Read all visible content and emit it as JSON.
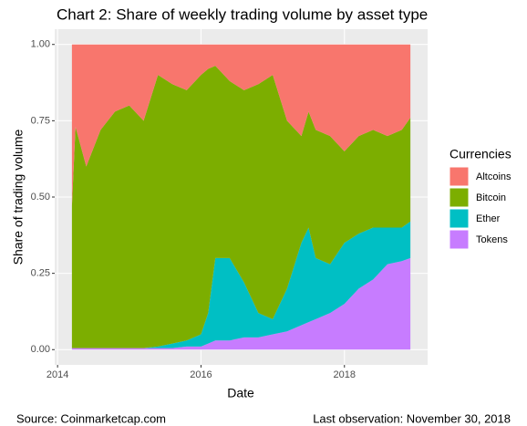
{
  "chart_data": {
    "type": "stacked-area",
    "title": "Chart 2: Share of weekly trading volume by asset type",
    "x_label": "Date",
    "y_label": "Share of trading volume",
    "source": "Source: Coinmarketcap.com",
    "note": "Last observation: November 30, 2018",
    "legend_title": "Currencies",
    "legend": "right",
    "grid": true,
    "x": [
      2014.2,
      2014.25,
      2014.4,
      2014.6,
      2014.8,
      2015.0,
      2015.2,
      2015.4,
      2015.6,
      2015.8,
      2016.0,
      2016.1,
      2016.2,
      2016.4,
      2016.6,
      2016.8,
      2017.0,
      2017.2,
      2017.4,
      2017.5,
      2017.6,
      2017.8,
      2018.0,
      2018.2,
      2018.4,
      2018.6,
      2018.8,
      2018.92
    ],
    "series": [
      {
        "name": "Altcoins",
        "color": "#F8766D",
        "values": [
          0.53,
          0.27,
          0.4,
          0.28,
          0.22,
          0.2,
          0.25,
          0.1,
          0.13,
          0.15,
          0.1,
          0.08,
          0.07,
          0.12,
          0.15,
          0.13,
          0.1,
          0.25,
          0.3,
          0.22,
          0.28,
          0.3,
          0.35,
          0.3,
          0.28,
          0.3,
          0.28,
          0.24
        ]
      },
      {
        "name": "Bitcoin",
        "color": "#7CAE00",
        "values": [
          0.465,
          0.725,
          0.595,
          0.715,
          0.775,
          0.795,
          0.745,
          0.89,
          0.85,
          0.82,
          0.85,
          0.8,
          0.63,
          0.58,
          0.63,
          0.75,
          0.8,
          0.55,
          0.35,
          0.38,
          0.42,
          0.42,
          0.3,
          0.32,
          0.32,
          0.3,
          0.32,
          0.34
        ]
      },
      {
        "name": "Ether",
        "color": "#00BFC4",
        "values": [
          0,
          0,
          0,
          0,
          0,
          0,
          0,
          0.005,
          0.015,
          0.02,
          0.04,
          0.1,
          0.27,
          0.27,
          0.18,
          0.08,
          0.05,
          0.14,
          0.27,
          0.31,
          0.2,
          0.16,
          0.2,
          0.18,
          0.17,
          0.12,
          0.11,
          0.12
        ]
      },
      {
        "name": "Tokens",
        "color": "#C77CFF",
        "values": [
          0.005,
          0.005,
          0.005,
          0.005,
          0.005,
          0.005,
          0.005,
          0.005,
          0.005,
          0.01,
          0.01,
          0.02,
          0.03,
          0.03,
          0.04,
          0.04,
          0.05,
          0.06,
          0.08,
          0.09,
          0.1,
          0.12,
          0.15,
          0.2,
          0.23,
          0.28,
          0.29,
          0.3
        ]
      }
    ],
    "xlim": [
      2013.96,
      2019.16
    ],
    "xticks": [
      2014,
      2016,
      2018
    ],
    "ylim": [
      -0.05,
      1.05
    ],
    "yticks": [
      {
        "value": 0,
        "label": "0.00"
      },
      {
        "value": 0.25,
        "label": "0.25"
      },
      {
        "value": 0.5,
        "label": "0.50"
      },
      {
        "value": 0.75,
        "label": "0.75"
      },
      {
        "value": 1,
        "label": "1.00"
      }
    ]
  }
}
